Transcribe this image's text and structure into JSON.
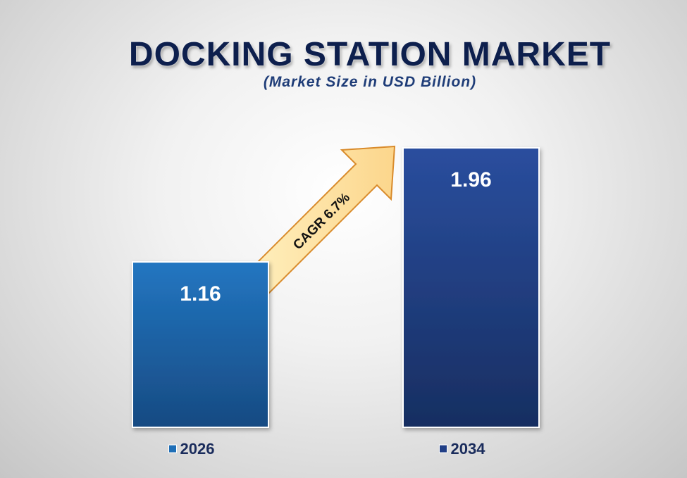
{
  "chart_data": {
    "type": "bar",
    "title": "DOCKING STATION MARKET",
    "subtitle": "(Market Size in USD Billion)",
    "categories": [
      "2026",
      "2034"
    ],
    "values": [
      1.16,
      1.96
    ],
    "value_labels": [
      "1.16",
      "1.96"
    ],
    "legend": [
      "2026",
      "2034"
    ],
    "colors": [
      "#1f6fb7",
      "#213f86"
    ],
    "annotation": "CAGR  6.7%",
    "ylim": [
      0,
      1.96
    ],
    "grid": false,
    "legend_placement": "bottom"
  }
}
